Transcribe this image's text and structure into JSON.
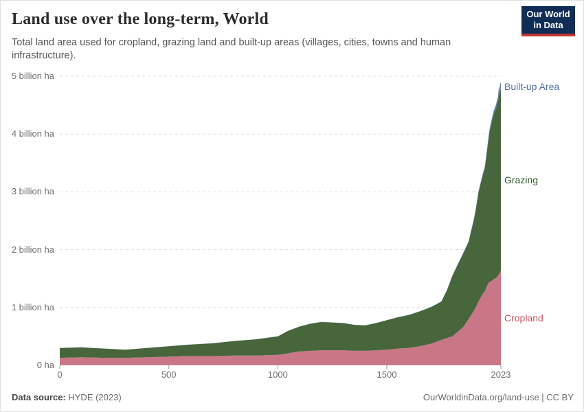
{
  "header": {
    "title": "Land use over the long-term, World",
    "subtitle": "Total land area used for cropland, grazing land and built-up areas (villages, cities, towns and human infrastructure).",
    "logo_line1": "Our World",
    "logo_line2": "in Data",
    "logo_bg_color": "#0f2d55",
    "logo_stripe_color": "#c43530"
  },
  "footer": {
    "source_label": "Data source:",
    "source_value": "HYDE (2023)",
    "right_text": "OurWorldinData.org/land-use | CC BY"
  },
  "chart_data": {
    "type": "area",
    "stacked": true,
    "title": "Land use over the long-term, World",
    "xlabel": "",
    "ylabel": "",
    "unit": "billion ha",
    "xlim": [
      0,
      2023
    ],
    "ylim": [
      0,
      5
    ],
    "grid": "horizontal-dashed",
    "gridline_color": "#dddddd",
    "axis_text_color": "#6e6e6e",
    "legend_position": "right-inline-labels",
    "x": [
      0,
      100,
      200,
      300,
      400,
      500,
      600,
      700,
      800,
      900,
      1000,
      1050,
      1100,
      1150,
      1200,
      1250,
      1300,
      1350,
      1400,
      1450,
      1500,
      1550,
      1600,
      1650,
      1700,
      1750,
      1775,
      1800,
      1825,
      1850,
      1875,
      1900,
      1910,
      1920,
      1930,
      1940,
      1950,
      1960,
      1970,
      1980,
      1990,
      2000,
      2005,
      2010,
      2014,
      2017,
      2020,
      2023
    ],
    "series": [
      {
        "name": "Cropland",
        "color": "#c97687",
        "label_color": "#c25365",
        "values": [
          0.13,
          0.14,
          0.13,
          0.13,
          0.14,
          0.15,
          0.16,
          0.16,
          0.17,
          0.17,
          0.18,
          0.21,
          0.24,
          0.25,
          0.26,
          0.26,
          0.26,
          0.25,
          0.25,
          0.26,
          0.27,
          0.29,
          0.3,
          0.33,
          0.37,
          0.44,
          0.47,
          0.5,
          0.58,
          0.66,
          0.8,
          0.95,
          1.02,
          1.1,
          1.17,
          1.24,
          1.28,
          1.38,
          1.44,
          1.46,
          1.49,
          1.51,
          1.53,
          1.55,
          1.57,
          1.59,
          1.61,
          1.64
        ]
      },
      {
        "name": "Grazing",
        "color": "#47663c",
        "label_color": "#2f5f2d",
        "values": [
          0.17,
          0.17,
          0.16,
          0.14,
          0.16,
          0.18,
          0.2,
          0.22,
          0.25,
          0.28,
          0.32,
          0.39,
          0.43,
          0.47,
          0.49,
          0.48,
          0.47,
          0.45,
          0.44,
          0.47,
          0.51,
          0.54,
          0.57,
          0.6,
          0.63,
          0.66,
          0.82,
          1.04,
          1.16,
          1.27,
          1.33,
          1.58,
          1.71,
          1.88,
          1.96,
          2.04,
          2.13,
          2.33,
          2.57,
          2.73,
          2.85,
          2.92,
          2.97,
          3.01,
          3.12,
          3.09,
          3.14,
          3.13
        ]
      },
      {
        "name": "Built-up Area",
        "color": "#5f7cb0",
        "label_color": "#54709e",
        "values": [
          0.001,
          0.001,
          0.001,
          0.001,
          0.001,
          0.001,
          0.001,
          0.001,
          0.001,
          0.001,
          0.002,
          0.002,
          0.002,
          0.002,
          0.002,
          0.002,
          0.002,
          0.002,
          0.002,
          0.002,
          0.002,
          0.003,
          0.003,
          0.004,
          0.005,
          0.006,
          0.007,
          0.008,
          0.01,
          0.012,
          0.015,
          0.02,
          0.022,
          0.025,
          0.03,
          0.035,
          0.04,
          0.045,
          0.05,
          0.055,
          0.06,
          0.07,
          0.08,
          0.09,
          0.14,
          0.06,
          0.14,
          0.1
        ]
      }
    ],
    "y_ticks": [
      {
        "value": 0,
        "label": "0 ha"
      },
      {
        "value": 1,
        "label": "1 billion ha"
      },
      {
        "value": 2,
        "label": "2 billion ha"
      },
      {
        "value": 3,
        "label": "3 billion ha"
      },
      {
        "value": 4,
        "label": "4 billion ha"
      },
      {
        "value": 5,
        "label": "5 billion ha"
      }
    ],
    "x_ticks": [
      {
        "value": 0,
        "label": "0"
      },
      {
        "value": 500,
        "label": "500"
      },
      {
        "value": 1000,
        "label": "1000"
      },
      {
        "value": 1500,
        "label": "1500"
      },
      {
        "value": 2023,
        "label": "2023"
      }
    ]
  }
}
